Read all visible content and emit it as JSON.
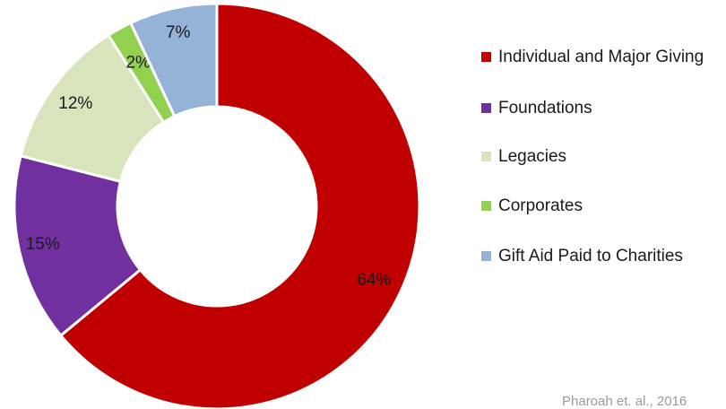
{
  "chart_data": {
    "type": "pie",
    "variant": "donut",
    "start": "top, clockwise",
    "slices": [
      {
        "label": "Individual and Major Giving",
        "value": 64,
        "display": "64%",
        "color": "#c00000"
      },
      {
        "label": "Foundations",
        "value": 15,
        "display": "15%",
        "color": "#7030a0"
      },
      {
        "label": "Legacies",
        "value": 12,
        "display": "12%",
        "color": "#d8e4bc"
      },
      {
        "label": "Corporates",
        "value": 2,
        "display": "2%",
        "color": "#92d050"
      },
      {
        "label": "Gift Aid Paid to Charities",
        "value": 7,
        "display": "7%",
        "color": "#95b3d7"
      }
    ],
    "legend_position": "right"
  },
  "source_note": "Pharoah et. al., 2016"
}
